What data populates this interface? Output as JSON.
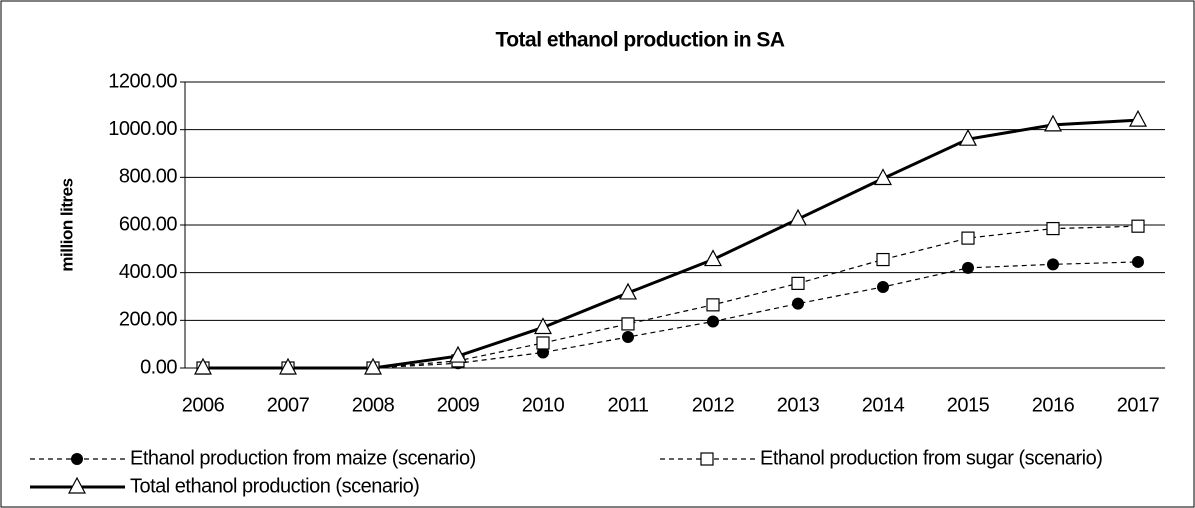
{
  "chart_data": {
    "type": "line",
    "title": "Total ethanol production in SA",
    "y_label": "million litres",
    "categories": [
      "2006",
      "2007",
      "2008",
      "2009",
      "2010",
      "2011",
      "2012",
      "2013",
      "2014",
      "2015",
      "2016",
      "2017"
    ],
    "series": [
      {
        "name": "Ethanol production from maize (scenario)",
        "color": "#000000",
        "dash": "dashed",
        "marker": "filled-circle",
        "values": [
          0,
          0,
          0,
          20,
          65,
          130,
          195,
          270,
          340,
          420,
          435,
          445
        ]
      },
      {
        "name": "Ethanol production from sugar (scenario)",
        "color": "#000000",
        "dash": "dashed",
        "marker": "open-square",
        "values": [
          0,
          0,
          0,
          30,
          105,
          185,
          265,
          355,
          455,
          545,
          585,
          595
        ]
      },
      {
        "name": "Total ethanol production (scenario)",
        "color": "#000000",
        "dash": "solid",
        "marker": "open-triangle",
        "values": [
          0,
          0,
          0,
          50,
          170,
          315,
          455,
          625,
          795,
          960,
          1020,
          1040
        ]
      }
    ],
    "ylim": [
      0,
      1200
    ],
    "yticks": [
      {
        "value": 0,
        "label": "0.00"
      },
      {
        "value": 200,
        "label": "200.00"
      },
      {
        "value": 400,
        "label": "400.00"
      },
      {
        "value": 600,
        "label": "600.00"
      },
      {
        "value": 800,
        "label": "800.00"
      },
      {
        "value": 1000,
        "label": "1000.00"
      },
      {
        "value": 1200,
        "label": "1200.00"
      }
    ],
    "grid": true,
    "legend": "bottom"
  }
}
